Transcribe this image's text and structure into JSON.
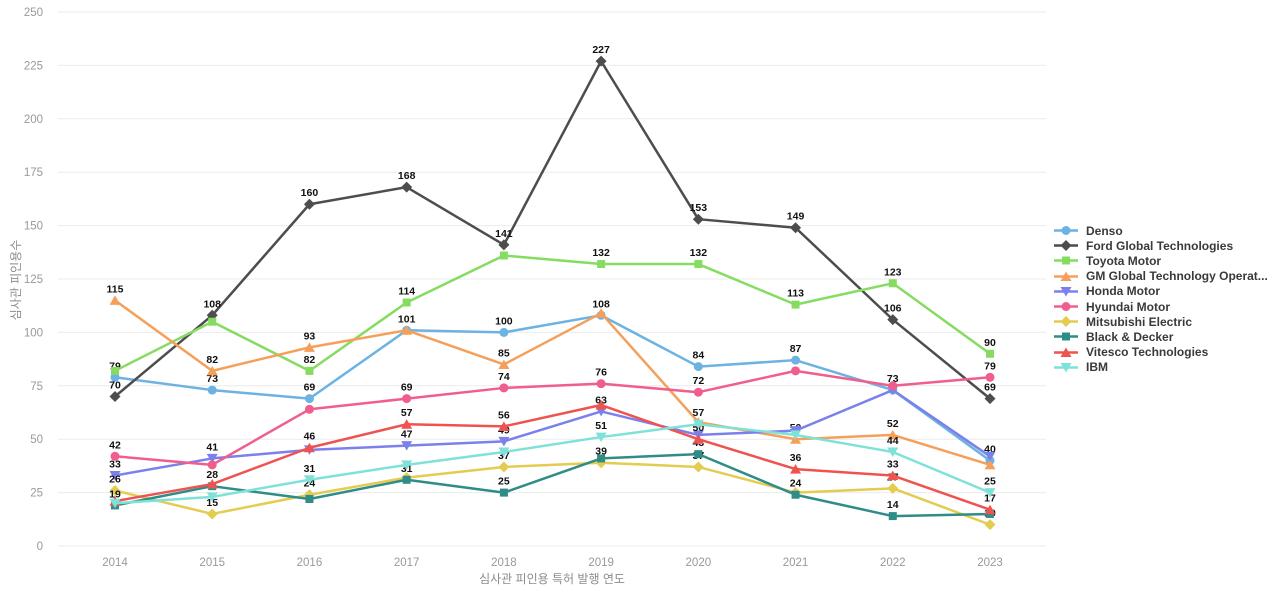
{
  "chart_data": {
    "type": "line",
    "x": [
      2014,
      2015,
      2016,
      2017,
      2018,
      2019,
      2020,
      2021,
      2022,
      2023
    ],
    "xlabel": "심사관 피인용 특허 발행 연도",
    "ylabel": "심사관 피인용수",
    "ylim": [
      0,
      250
    ],
    "yticks": [
      0,
      25,
      50,
      75,
      100,
      125,
      150,
      175,
      200,
      225,
      250
    ],
    "grid": true,
    "legend_position": "right",
    "series": [
      {
        "name": "Denso",
        "color": "#6CB2E2",
        "marker": "circle",
        "values": [
          79,
          73,
          69,
          101,
          100,
          108,
          84,
          87,
          73,
          40
        ],
        "labeled": [
          true,
          true,
          true,
          false,
          true,
          true,
          true,
          true,
          false,
          true
        ]
      },
      {
        "name": "Ford Global Technologies",
        "color": "#4D4D4D",
        "marker": "diamond",
        "values": [
          70,
          108,
          160,
          168,
          141,
          227,
          153,
          149,
          106,
          69
        ],
        "labeled": [
          true,
          true,
          true,
          true,
          true,
          true,
          true,
          true,
          true,
          true
        ]
      },
      {
        "name": "Toyota Motor",
        "color": "#85DC60",
        "marker": "square",
        "values": [
          82,
          105,
          82,
          114,
          136,
          132,
          132,
          113,
          123,
          90
        ],
        "labeled": [
          false,
          false,
          true,
          true,
          false,
          true,
          true,
          true,
          true,
          true
        ]
      },
      {
        "name": "GM Global Technology Operat...",
        "color": "#F5A05A",
        "marker": "triangle-up",
        "values": [
          115,
          82,
          93,
          101,
          85,
          109,
          58,
          50,
          52,
          38
        ],
        "labeled": [
          true,
          true,
          true,
          true,
          true,
          false,
          false,
          true,
          true,
          false
        ]
      },
      {
        "name": "Honda Motor",
        "color": "#7B80EB",
        "marker": "triangle-down",
        "values": [
          33,
          41,
          45,
          47,
          49,
          63,
          52,
          54,
          73,
          42
        ],
        "labeled": [
          true,
          true,
          false,
          true,
          true,
          true,
          false,
          false,
          true,
          false
        ]
      },
      {
        "name": "Hyundai Motor",
        "color": "#F05E8D",
        "marker": "circle",
        "values": [
          42,
          38,
          64,
          69,
          74,
          76,
          72,
          82,
          75,
          79
        ],
        "labeled": [
          true,
          false,
          false,
          true,
          true,
          true,
          true,
          false,
          false,
          true
        ]
      },
      {
        "name": "Mitsubishi Electric",
        "color": "#E3CC4F",
        "marker": "diamond",
        "values": [
          26,
          15,
          24,
          32,
          37,
          39,
          37,
          25,
          27,
          10
        ],
        "labeled": [
          true,
          true,
          true,
          false,
          true,
          true,
          true,
          false,
          true,
          true
        ]
      },
      {
        "name": "Black & Decker",
        "color": "#2F8C87",
        "marker": "square",
        "values": [
          19,
          28,
          22,
          31,
          25,
          41,
          43,
          24,
          14,
          15
        ],
        "labeled": [
          true,
          true,
          false,
          true,
          true,
          false,
          true,
          true,
          true,
          false
        ]
      },
      {
        "name": "Vitesco Technologies",
        "color": "#EF5350",
        "marker": "triangle-up",
        "values": [
          21,
          29,
          46,
          57,
          56,
          66,
          50,
          36,
          33,
          17
        ],
        "labeled": [
          false,
          false,
          true,
          true,
          true,
          false,
          true,
          true,
          true,
          true
        ]
      },
      {
        "name": "IBM",
        "color": "#7FE2D8",
        "marker": "triangle-down",
        "values": [
          20,
          23,
          31,
          38,
          44,
          51,
          57,
          52,
          44,
          25
        ],
        "labeled": [
          false,
          false,
          true,
          false,
          false,
          true,
          true,
          false,
          true,
          true
        ]
      }
    ]
  }
}
